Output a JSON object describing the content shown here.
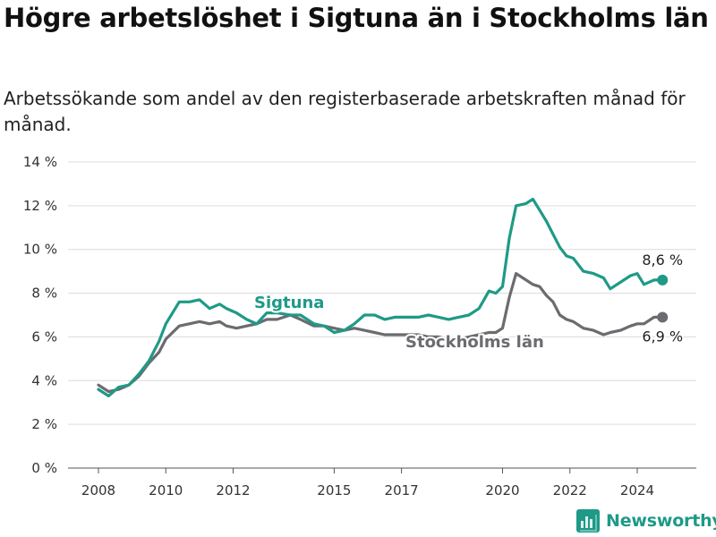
{
  "title": "Högre arbetslöshet i Sigtuna än i Stockholms län",
  "subtitle": "Arbetssökande som andel av den registerbaserade arbetskraften månad för månad.",
  "brand": "Newsworthy",
  "colors": {
    "sigtuna": "#1e9a87",
    "stockholm": "#6b6b70",
    "grid": "#dcdcdc",
    "text": "#333333"
  },
  "chart_data": {
    "type": "line",
    "xlim": [
      2007.5,
      2025.5
    ],
    "ylim": [
      0,
      14
    ],
    "grid": true,
    "x_ticks": [
      2008,
      2010,
      2012,
      2015,
      2017,
      2020,
      2022,
      2024
    ],
    "y_ticks": [
      {
        "value": 0,
        "label": "0 %"
      },
      {
        "value": 2,
        "label": "2 %"
      },
      {
        "value": 4,
        "label": "4 %"
      },
      {
        "value": 6,
        "label": "6 %"
      },
      {
        "value": 8,
        "label": "8 %"
      },
      {
        "value": 10,
        "label": "10 %"
      },
      {
        "value": 12,
        "label": "12 %"
      },
      {
        "value": 14,
        "label": "14 %"
      }
    ],
    "series": [
      {
        "name": "Sigtuna",
        "color": "#1e9a87",
        "end_label": "8,6 %",
        "points": [
          [
            2008.0,
            3.6
          ],
          [
            2008.3,
            3.3
          ],
          [
            2008.6,
            3.7
          ],
          [
            2008.9,
            3.8
          ],
          [
            2009.2,
            4.3
          ],
          [
            2009.5,
            4.9
          ],
          [
            2009.8,
            5.8
          ],
          [
            2010.0,
            6.6
          ],
          [
            2010.4,
            7.6
          ],
          [
            2010.7,
            7.6
          ],
          [
            2011.0,
            7.7
          ],
          [
            2011.3,
            7.3
          ],
          [
            2011.6,
            7.5
          ],
          [
            2011.8,
            7.3
          ],
          [
            2012.1,
            7.1
          ],
          [
            2012.4,
            6.8
          ],
          [
            2012.7,
            6.6
          ],
          [
            2013.0,
            7.1
          ],
          [
            2013.3,
            7.1
          ],
          [
            2013.7,
            7.0
          ],
          [
            2014.0,
            7.0
          ],
          [
            2014.4,
            6.6
          ],
          [
            2014.7,
            6.5
          ],
          [
            2015.0,
            6.2
          ],
          [
            2015.3,
            6.3
          ],
          [
            2015.6,
            6.6
          ],
          [
            2015.9,
            7.0
          ],
          [
            2016.2,
            7.0
          ],
          [
            2016.5,
            6.8
          ],
          [
            2016.8,
            6.9
          ],
          [
            2017.1,
            6.9
          ],
          [
            2017.5,
            6.9
          ],
          [
            2017.8,
            7.0
          ],
          [
            2018.1,
            6.9
          ],
          [
            2018.4,
            6.8
          ],
          [
            2018.7,
            6.9
          ],
          [
            2019.0,
            7.0
          ],
          [
            2019.3,
            7.3
          ],
          [
            2019.6,
            8.1
          ],
          [
            2019.8,
            8.0
          ],
          [
            2020.0,
            8.3
          ],
          [
            2020.2,
            10.5
          ],
          [
            2020.4,
            12.0
          ],
          [
            2020.7,
            12.1
          ],
          [
            2020.9,
            12.3
          ],
          [
            2021.1,
            11.8
          ],
          [
            2021.3,
            11.3
          ],
          [
            2021.5,
            10.7
          ],
          [
            2021.7,
            10.1
          ],
          [
            2021.9,
            9.7
          ],
          [
            2022.1,
            9.6
          ],
          [
            2022.4,
            9.0
          ],
          [
            2022.7,
            8.9
          ],
          [
            2023.0,
            8.7
          ],
          [
            2023.2,
            8.2
          ],
          [
            2023.5,
            8.5
          ],
          [
            2023.8,
            8.8
          ],
          [
            2024.0,
            8.9
          ],
          [
            2024.2,
            8.4
          ],
          [
            2024.5,
            8.6
          ],
          [
            2024.75,
            8.6
          ]
        ]
      },
      {
        "name": "Stockholms län",
        "color": "#6b6b70",
        "end_label": "6,9 %",
        "points": [
          [
            2008.0,
            3.8
          ],
          [
            2008.3,
            3.5
          ],
          [
            2008.6,
            3.6
          ],
          [
            2008.9,
            3.8
          ],
          [
            2009.2,
            4.2
          ],
          [
            2009.5,
            4.8
          ],
          [
            2009.8,
            5.3
          ],
          [
            2010.0,
            5.9
          ],
          [
            2010.4,
            6.5
          ],
          [
            2010.7,
            6.6
          ],
          [
            2011.0,
            6.7
          ],
          [
            2011.3,
            6.6
          ],
          [
            2011.6,
            6.7
          ],
          [
            2011.8,
            6.5
          ],
          [
            2012.1,
            6.4
          ],
          [
            2012.4,
            6.5
          ],
          [
            2012.7,
            6.6
          ],
          [
            2013.0,
            6.8
          ],
          [
            2013.3,
            6.8
          ],
          [
            2013.7,
            7.0
          ],
          [
            2014.0,
            6.8
          ],
          [
            2014.4,
            6.5
          ],
          [
            2014.7,
            6.5
          ],
          [
            2015.0,
            6.4
          ],
          [
            2015.3,
            6.3
          ],
          [
            2015.6,
            6.4
          ],
          [
            2015.9,
            6.3
          ],
          [
            2016.2,
            6.2
          ],
          [
            2016.5,
            6.1
          ],
          [
            2016.8,
            6.1
          ],
          [
            2017.1,
            6.1
          ],
          [
            2017.5,
            6.1
          ],
          [
            2017.8,
            6.0
          ],
          [
            2018.1,
            6.0
          ],
          [
            2018.4,
            5.9
          ],
          [
            2018.7,
            5.9
          ],
          [
            2019.0,
            6.0
          ],
          [
            2019.3,
            6.1
          ],
          [
            2019.6,
            6.2
          ],
          [
            2019.8,
            6.2
          ],
          [
            2020.0,
            6.4
          ],
          [
            2020.2,
            7.8
          ],
          [
            2020.4,
            8.9
          ],
          [
            2020.7,
            8.6
          ],
          [
            2020.9,
            8.4
          ],
          [
            2021.1,
            8.3
          ],
          [
            2021.3,
            7.9
          ],
          [
            2021.5,
            7.6
          ],
          [
            2021.7,
            7.0
          ],
          [
            2021.9,
            6.8
          ],
          [
            2022.1,
            6.7
          ],
          [
            2022.4,
            6.4
          ],
          [
            2022.7,
            6.3
          ],
          [
            2023.0,
            6.1
          ],
          [
            2023.2,
            6.2
          ],
          [
            2023.5,
            6.3
          ],
          [
            2023.8,
            6.5
          ],
          [
            2024.0,
            6.6
          ],
          [
            2024.2,
            6.6
          ],
          [
            2024.5,
            6.9
          ],
          [
            2024.75,
            6.9
          ]
        ]
      }
    ]
  }
}
